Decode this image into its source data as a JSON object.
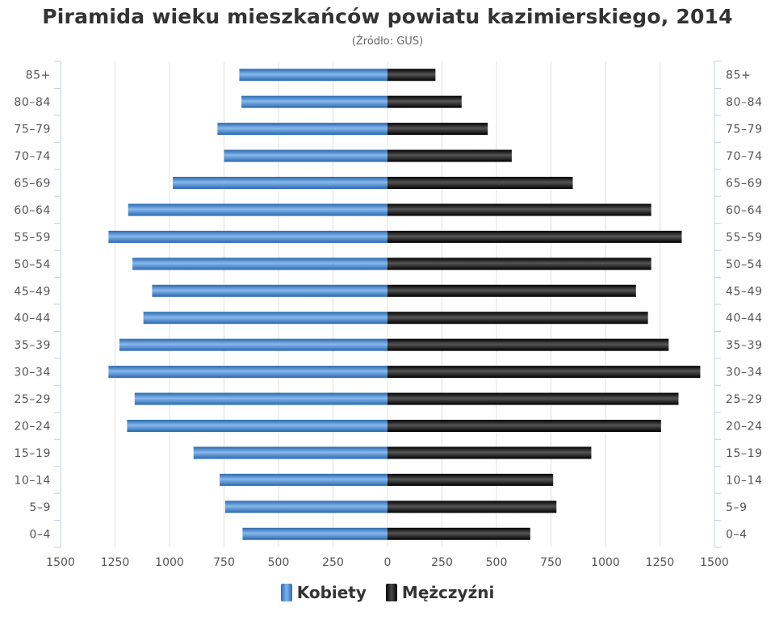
{
  "title": "Piramida wieku mieszkańców powiatu kazimierskiego, 2014",
  "subtitle": "(Źródło: GUS)",
  "legend": {
    "women": "Kobiety",
    "men": "Mężczyźni"
  },
  "colors": {
    "women": "#3d7fc8",
    "men": "#1a1a1a",
    "grid": "#e0e0e0",
    "axis": "#c0d0e0"
  },
  "chart_data": {
    "type": "bar",
    "orientation": "horizontal-population-pyramid",
    "title": "Piramida wieku mieszkańców powiatu kazimierskiego, 2014",
    "subtitle": "(Źródło: GUS)",
    "categories": [
      "0–4",
      "5–9",
      "10–14",
      "15–19",
      "20–24",
      "25–29",
      "30–34",
      "35–39",
      "40–44",
      "45–49",
      "50–54",
      "55–59",
      "60–64",
      "65–69",
      "70–74",
      "75–79",
      "80–84",
      "85+"
    ],
    "series": [
      {
        "name": "Kobiety",
        "side": "left",
        "values": [
          665,
          745,
          770,
          890,
          1195,
          1160,
          1280,
          1230,
          1120,
          1080,
          1170,
          1280,
          1190,
          985,
          750,
          780,
          670,
          680
        ]
      },
      {
        "name": "Mężczyźni",
        "side": "right",
        "values": [
          655,
          775,
          760,
          935,
          1255,
          1335,
          1435,
          1290,
          1195,
          1140,
          1210,
          1350,
          1210,
          850,
          570,
          460,
          340,
          220
        ]
      }
    ],
    "x_ticks": [
      "1500",
      "1250",
      "1000",
      "750",
      "500",
      "250",
      "0",
      "250",
      "500",
      "750",
      "1000",
      "1250",
      "1500"
    ],
    "xlim": [
      -1500,
      1500
    ],
    "grid": true,
    "legend_position": "bottom-center"
  }
}
